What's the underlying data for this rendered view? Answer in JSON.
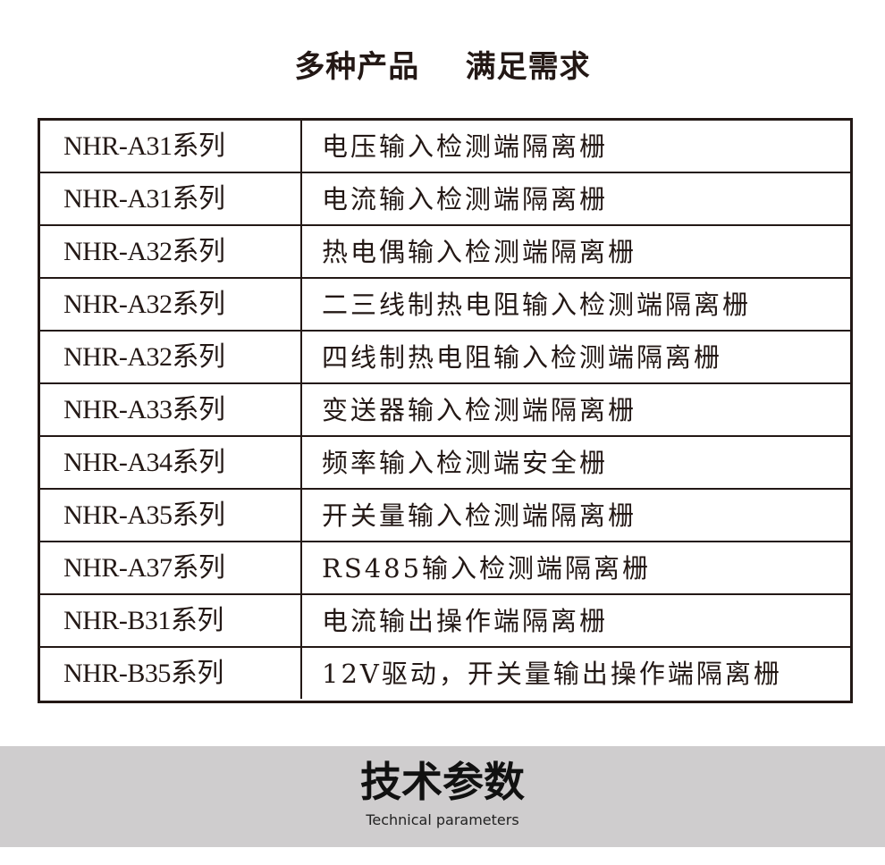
{
  "header": {
    "title": "多种产品    满足需求"
  },
  "table": {
    "rows": [
      {
        "series": "NHR-A31系列",
        "desc": "电压输入检测端隔离栅"
      },
      {
        "series": "NHR-A31系列",
        "desc": "电流输入检测端隔离栅"
      },
      {
        "series": "NHR-A32系列",
        "desc": "热电偶输入检测端隔离栅"
      },
      {
        "series": "NHR-A32系列",
        "desc": "二三线制热电阻输入检测端隔离栅"
      },
      {
        "series": "NHR-A32系列",
        "desc": "四线制热电阻输入检测端隔离栅"
      },
      {
        "series": "NHR-A33系列",
        "desc": "变送器输入检测端隔离栅"
      },
      {
        "series": "NHR-A34系列",
        "desc": "频率输入检测端安全栅"
      },
      {
        "series": "NHR-A35系列",
        "desc": "开关量输入检测端隔离栅"
      },
      {
        "series": "NHR-A37系列",
        "desc": "RS485输入检测端隔离栅"
      },
      {
        "series": "NHR-B31系列",
        "desc": "电流输出操作端隔离栅"
      },
      {
        "series": "NHR-B35系列",
        "desc": "12V驱动，开关量输出操作端隔离栅"
      }
    ]
  },
  "section": {
    "title": "技术参数",
    "subtitle": "Technical parameters"
  }
}
